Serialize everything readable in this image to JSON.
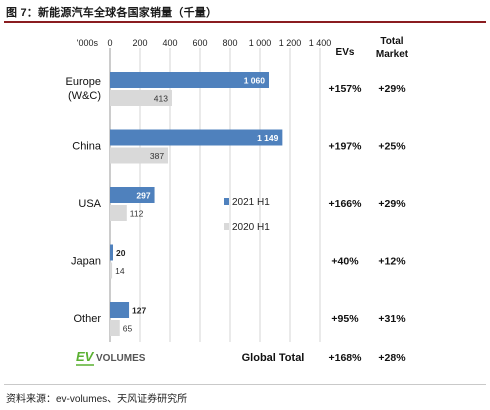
{
  "figure_title": "图 7：新能源汽车全球各国家销量（千量）",
  "source_note": "资料来源：ev-volumes、天风证券研究所",
  "chart_data": {
    "type": "bar",
    "orientation": "horizontal",
    "unit_label": "'000s",
    "xlim": [
      0,
      1400
    ],
    "xticks": [
      "0",
      "200",
      "400",
      "600",
      "800",
      "1 000",
      "1 200",
      "1 400"
    ],
    "categories": [
      "Europe (W&C)",
      "China",
      "USA",
      "Japan",
      "Other"
    ],
    "series": [
      {
        "name": "2021 H1",
        "values": [
          1060,
          1149,
          297,
          20,
          127
        ],
        "labels": [
          "1 060",
          "1 149",
          "297",
          "20",
          "127"
        ],
        "color": "#4f81bd"
      },
      {
        "name": "2020 H1",
        "values": [
          413,
          387,
          112,
          14,
          65
        ],
        "labels": [
          "413",
          "387",
          "112",
          "14",
          "65"
        ],
        "color": "#d9d9d9"
      }
    ],
    "legend_position": "center-right",
    "grid": true,
    "table": {
      "headers": [
        "EVs",
        "Total Market"
      ],
      "rows": [
        [
          "+157%",
          "+29%"
        ],
        [
          "+197%",
          "+25%"
        ],
        [
          "+166%",
          "+29%"
        ],
        [
          "+40%",
          "+12%"
        ],
        [
          "+95%",
          "+31%"
        ]
      ],
      "total_label": "Global Total",
      "total_row": [
        "+168%",
        "+28%"
      ]
    },
    "logo_text": "EV VOLUMES",
    "colors": {
      "ev_bar": "#4f81bd",
      "market_bar": "#d9d9d9",
      "logo_green": "#5ab031",
      "title_rule": "#8a1c20"
    }
  }
}
